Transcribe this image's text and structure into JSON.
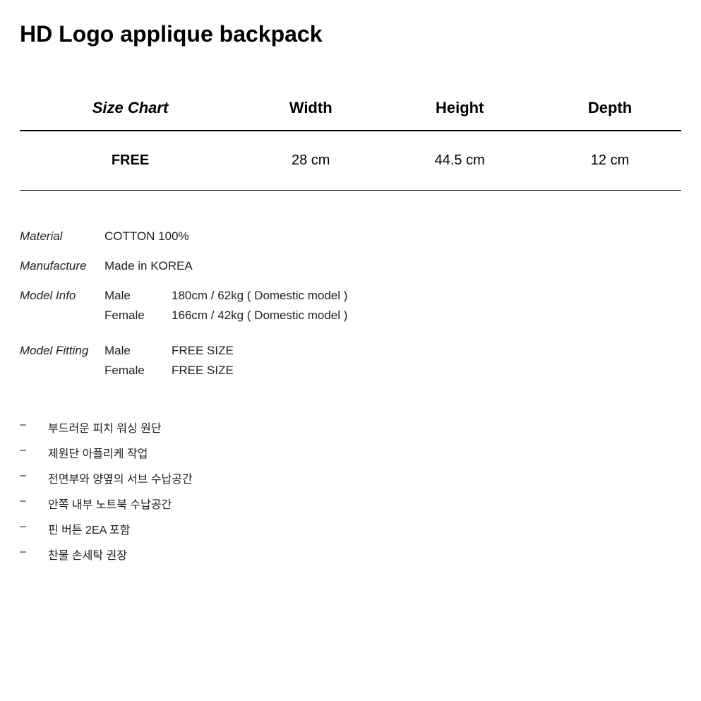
{
  "title": "HD Logo applique backpack",
  "sizeTable": {
    "columns": [
      "Size Chart",
      "Width",
      "Height",
      "Depth"
    ],
    "rows": [
      [
        "FREE",
        "28 cm",
        "44.5 cm",
        "12 cm"
      ]
    ]
  },
  "info": {
    "material": {
      "label": "Material",
      "value": "COTTON 100%"
    },
    "manufacture": {
      "label": "Manufacture",
      "value": "Made in KOREA"
    },
    "modelInfo": {
      "label": "Model Info",
      "male": {
        "label": "Male",
        "value": "180cm / 62kg ( Domestic model )"
      },
      "female": {
        "label": "Female",
        "value": "166cm / 42kg ( Domestic model )"
      }
    },
    "modelFitting": {
      "label": "Model Fitting",
      "male": {
        "label": "Male",
        "value": "FREE SIZE"
      },
      "female": {
        "label": "Female",
        "value": "FREE SIZE"
      }
    }
  },
  "bullets": [
    "부드러운 피치 워싱 원단",
    "제원단 아플리케 작업",
    "전면부와 양옆의 서브 수납공간",
    "안쪽 내부 노트북 수납공간",
    "핀 버튼 2EA 포함",
    "찬물 손세탁 권장"
  ],
  "bulletDash": "–"
}
